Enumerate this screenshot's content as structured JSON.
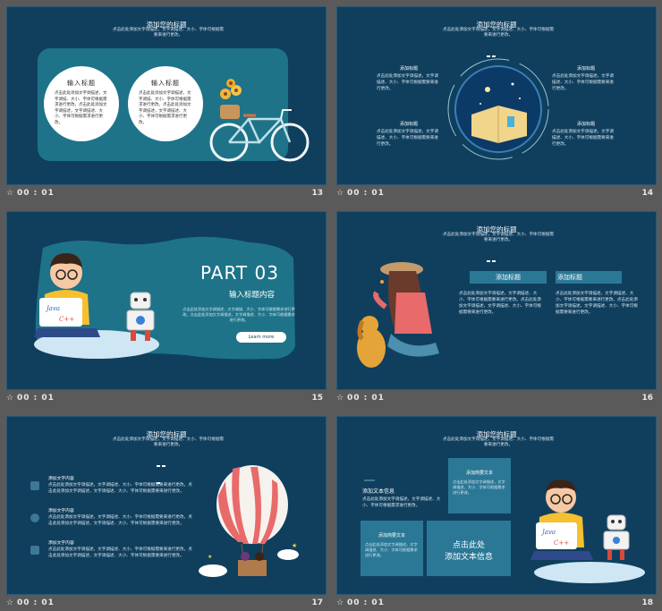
{
  "thumbs": [
    {
      "time": "00 : 01",
      "num": "13"
    },
    {
      "time": "00 : 01",
      "num": "14"
    },
    {
      "time": "00 : 01",
      "num": "15"
    },
    {
      "time": "00 : 01",
      "num": "16"
    },
    {
      "time": "00 : 01",
      "num": "17"
    },
    {
      "time": "00 : 01",
      "num": "18"
    }
  ],
  "star": "☆",
  "common": {
    "title": "添加您的标题",
    "sub1": "点击此处添加文字调描述，文字调描述、大小、字体可根据需",
    "sub2": "要来进行更改。",
    "body_long": "点击此处添加文字调描述，文字调描述、大小、字体可根据需要来进行更改。点击此处添加文字调描述，文字调描述、大小、字体可根据需要来进行更改。",
    "body_short": "点击此处添加文字调描述，文字调描述、大小、字体可根据需要来进行更改。",
    "add_title": "添加标题",
    "add_text": "添加文字内容"
  },
  "s13": {
    "circle_title": "输入标题",
    "circle_text": "点击此处添加文字调描述，文字调描、大小、字体可根据需求进行更改。点击此处添加文字调描述，文字调描述、大小、字体可根据需求进行更改。"
  },
  "s15": {
    "part": "PART 03",
    "subtitle": "输入标题内容",
    "text": "点击此处添加文字调描述，文字调描、大小、字体可根据需求进行更改。点击此处添加文字调描述，文字调描述、大小、字体可根据需求进行更改。",
    "button": "Learn more"
  },
  "s16": {
    "label": "添加标题"
  },
  "s18": {
    "box1_title": "添加文本信息",
    "box1_text": "点击此处添加文字调描述，文字调描述、大小、字体可根据需求进行更改。",
    "box_small": "添加简要文本",
    "box_small_text": "点击此处添加文字调描述，文字调描述、大小、字体可根据需求进行更改。",
    "big1": "点击此处",
    "big2": "添加文本信息"
  },
  "illustration": {
    "java": "Java",
    "cpp": "C++"
  }
}
